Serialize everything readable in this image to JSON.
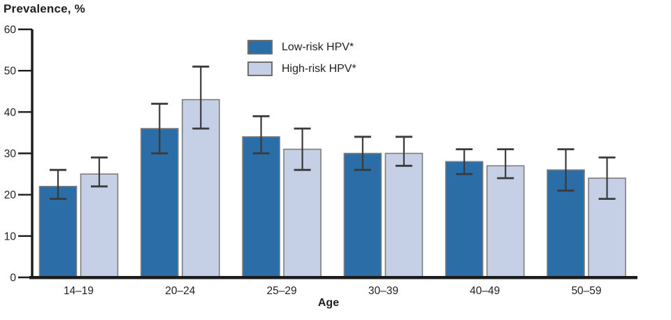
{
  "legend": {
    "items": [
      {
        "label": "Low-risk HPV*",
        "color": "#2a6da7"
      },
      {
        "label": "High-risk HPV*",
        "color": "#c5cfe6"
      }
    ]
  },
  "chart_data": {
    "type": "bar",
    "title": "Prevalence, %",
    "xlabel": "Age",
    "ylabel": "Prevalence, %",
    "categories": [
      "14–19",
      "20–24",
      "25–29",
      "30–39",
      "40–49",
      "50–59"
    ],
    "series": [
      {
        "name": "Low-risk HPV*",
        "color": "#2a6da7",
        "values": [
          22,
          36,
          34,
          30,
          28,
          26
        ],
        "ci_low": [
          19,
          30,
          30,
          26,
          25,
          21
        ],
        "ci_high": [
          26,
          42,
          39,
          34,
          31,
          31
        ]
      },
      {
        "name": "High-risk HPV*",
        "color": "#c5cfe6",
        "values": [
          25,
          43,
          31,
          30,
          27,
          24
        ],
        "ci_low": [
          22,
          36,
          26,
          27,
          24,
          19
        ],
        "ci_high": [
          29,
          51,
          36,
          34,
          31,
          29
        ]
      }
    ],
    "ylim": [
      0,
      60
    ],
    "yticks": [
      0,
      10,
      20,
      30,
      40,
      50,
      60
    ],
    "grid": false,
    "error_bars": true,
    "legend_position": "top-center",
    "colors": {
      "axis": "#1c1c1c",
      "error_bar": "#3a3a3a",
      "bar_border": "#7d7d7d",
      "text": "#1f1f1f"
    }
  }
}
